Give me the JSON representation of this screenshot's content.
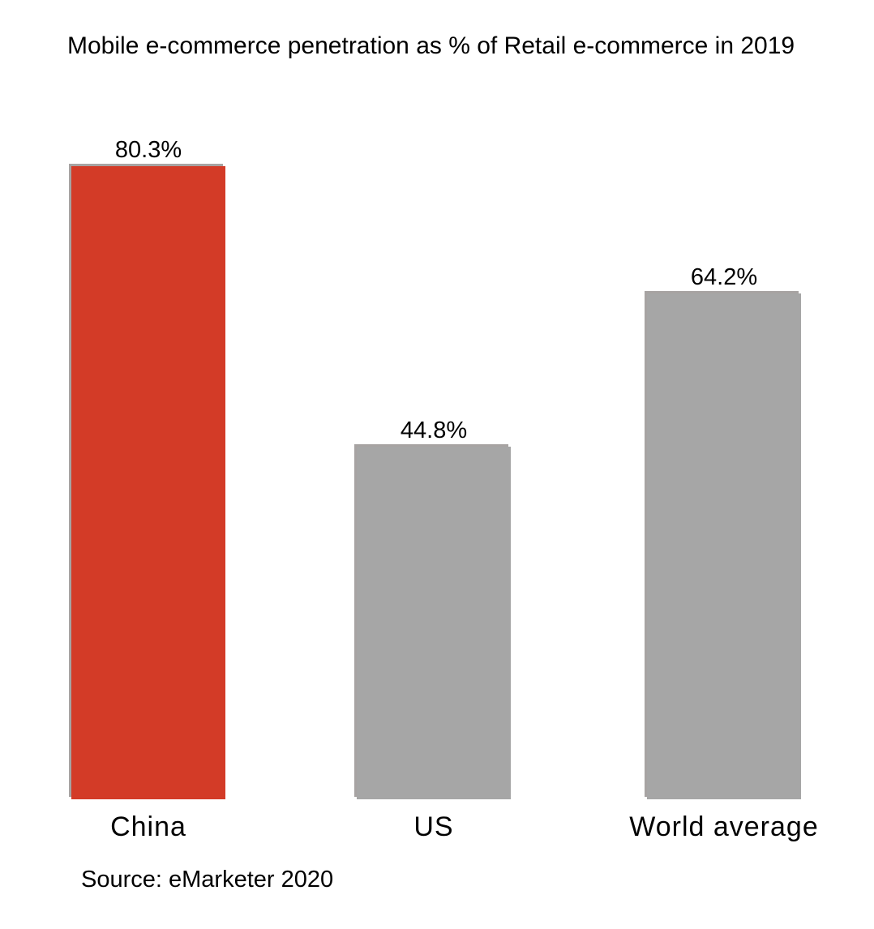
{
  "page": {
    "title": "Mobile e-commerce penetration as % of Retail e-commerce in 2019",
    "source": "Source: eMarketer 2020"
  },
  "colors": {
    "highlight_bar": "#d33b27",
    "default_bar": "#a6a6a6",
    "bar_shadow": "#a7a3a2",
    "text": "#000000",
    "background": "#ffffff"
  },
  "chart_data": {
    "type": "bar",
    "title": "Mobile e-commerce penetration as % of Retail e-commerce in 2019",
    "categories": [
      "China",
      "US",
      "World average"
    ],
    "values": [
      80.3,
      44.8,
      64.2
    ],
    "value_labels": [
      "80.3%",
      "44.8%",
      "64.2%"
    ],
    "series": [
      {
        "name": "Mobile e-commerce penetration",
        "values": [
          80.3,
          44.8,
          64.2
        ]
      }
    ],
    "bar_colors": [
      "#d33b27",
      "#a6a6a6",
      "#a6a6a6"
    ],
    "highlighted_category": "China",
    "xlabel": "",
    "ylabel": "",
    "ylim": [
      0,
      100
    ],
    "grid": false,
    "legend": "none",
    "axis_lines": false,
    "annotations": [
      "Source: eMarketer 2020"
    ]
  }
}
